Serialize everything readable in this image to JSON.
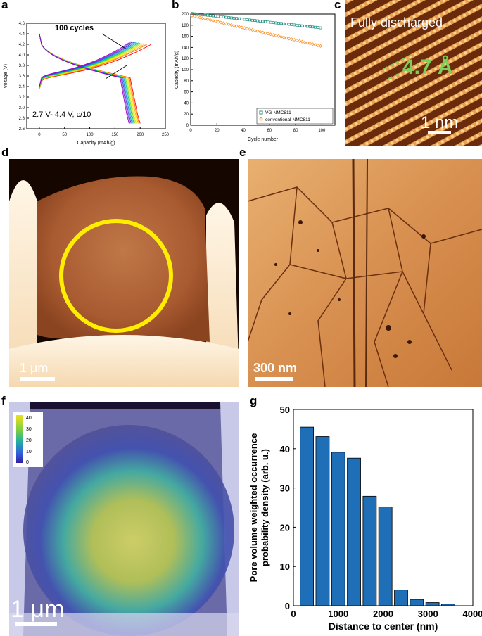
{
  "panels": {
    "a": {
      "letter": "a"
    },
    "b": {
      "letter": "b"
    },
    "c": {
      "letter": "c",
      "label": "Fully discharged",
      "spacing": "4.7 Å",
      "scalebar": "1 nm"
    },
    "d": {
      "letter": "d",
      "scalebar": "1 μm"
    },
    "e": {
      "letter": "e",
      "scalebar": "300 nm"
    },
    "f": {
      "letter": "f",
      "scalebar": "1 μm",
      "colorbar_ticks": [
        "40",
        "30",
        "20",
        "10",
        "0"
      ]
    },
    "g": {
      "letter": "g"
    }
  },
  "chart_data": [
    {
      "type": "line",
      "panel": "a",
      "xlabel": "Capacity (mAh/g)",
      "ylabel": "voltage (V)",
      "xlim": [
        -25,
        250
      ],
      "ylim": [
        2.6,
        4.6
      ],
      "xticks": [
        "0",
        "50",
        "100",
        "150",
        "200",
        "250"
      ],
      "yticks": [
        "2.6",
        "2.8",
        "3.0",
        "3.2",
        "3.4",
        "3.6",
        "3.8",
        "4.0",
        "4.2",
        "4.4",
        "4.6"
      ],
      "annotation_cycles": "100 cycles",
      "annotation_condition": "2.7 V- 4.4 V, c/10",
      "colors": [
        "#ff0000",
        "#ff6a00",
        "#ffb000",
        "#ffe600",
        "#c8f000",
        "#6edc00",
        "#00c878",
        "#00b4c8",
        "#0078e6",
        "#3c3cdc",
        "#7828c8",
        "#a000c8"
      ],
      "series_discharge_capacity_max": [
        200,
        198,
        196,
        194,
        192,
        190,
        188,
        186,
        184,
        182,
        180,
        178
      ],
      "series_charge_capacity_max": [
        222,
        214,
        210,
        206,
        203,
        200,
        197,
        194,
        191,
        188,
        185,
        182
      ]
    },
    {
      "type": "scatter",
      "panel": "b",
      "xlabel": "Cycle number",
      "ylabel": "Capacity (mAh/g)",
      "xlim": [
        0,
        110
      ],
      "ylim": [
        0,
        200
      ],
      "xticks": [
        "0",
        "20",
        "40",
        "60",
        "80",
        "100"
      ],
      "yticks": [
        "0",
        "20",
        "40",
        "60",
        "80",
        "100",
        "120",
        "140",
        "160",
        "180",
        "200"
      ],
      "series": [
        {
          "name": "VG-NMC811",
          "color": "#1a8a7a",
          "start": 201,
          "end": 175
        },
        {
          "name": "conventional-NMC811",
          "color": "#ff8c1a",
          "start": 197,
          "end": 142
        }
      ]
    },
    {
      "type": "bar",
      "panel": "g",
      "xlabel": "Distance to center (nm)",
      "ylabel_line1": "Pore volume weighted occurrence",
      "ylabel_line2": "probability density (arb. u.)",
      "xlim": [
        0,
        4000
      ],
      "ylim": [
        0,
        50
      ],
      "xticks": [
        "0",
        "1000",
        "2000",
        "3000",
        "4000"
      ],
      "yticks": [
        "0",
        "10",
        "20",
        "30",
        "40",
        "50"
      ],
      "x": [
        300,
        650,
        1000,
        1350,
        1700,
        2050,
        2400,
        2750,
        3100,
        3450
      ],
      "values": [
        45.5,
        43.1,
        39.1,
        37.6,
        27.9,
        25.2,
        4.0,
        1.6,
        0.8,
        0.4
      ],
      "color": "#1f6fb8"
    }
  ]
}
